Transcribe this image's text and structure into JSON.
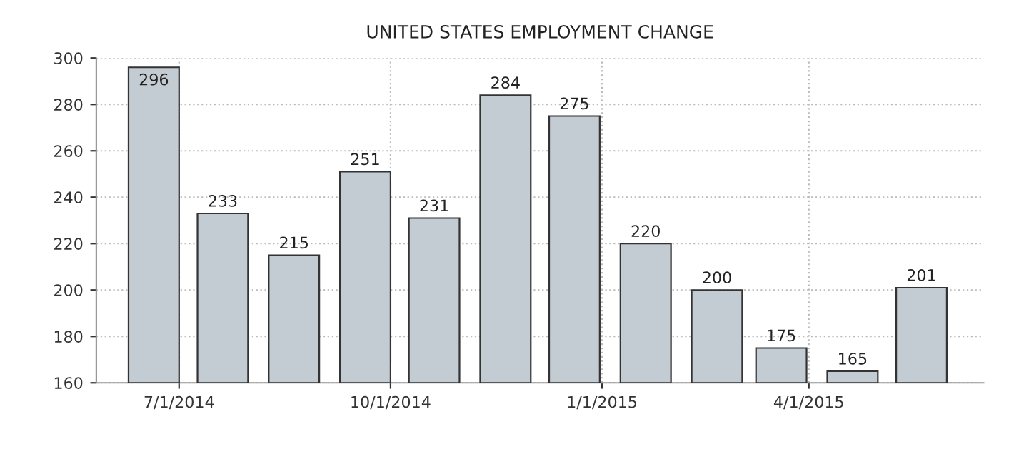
{
  "chart_data": {
    "type": "bar",
    "title": "UNITED STATES EMPLOYMENT CHANGE",
    "x": [
      "2014-06-20",
      "2014-07-20",
      "2014-08-20",
      "2014-09-20",
      "2014-10-20",
      "2014-11-20",
      "2014-12-20",
      "2015-01-20",
      "2015-02-20",
      "2015-03-20",
      "2015-04-20",
      "2015-05-20"
    ],
    "values": [
      296,
      233,
      215,
      251,
      231,
      284,
      275,
      220,
      200,
      175,
      165,
      201
    ],
    "color": "#c3cbd3",
    "xlim": [
      "2014-05-26",
      "2015-06-16"
    ],
    "xticks": [
      {
        "value": "2014-07-01",
        "label": "7/1/2014"
      },
      {
        "value": "2014-10-01",
        "label": "10/1/2014"
      },
      {
        "value": "2015-01-01",
        "label": "1/1/2015"
      },
      {
        "value": "2015-04-01",
        "label": "4/1/2015"
      }
    ],
    "ylim": [
      160,
      300
    ],
    "yticks": [
      160,
      180,
      200,
      220,
      240,
      260,
      280,
      300
    ],
    "grid": true,
    "data_labels": true
  }
}
